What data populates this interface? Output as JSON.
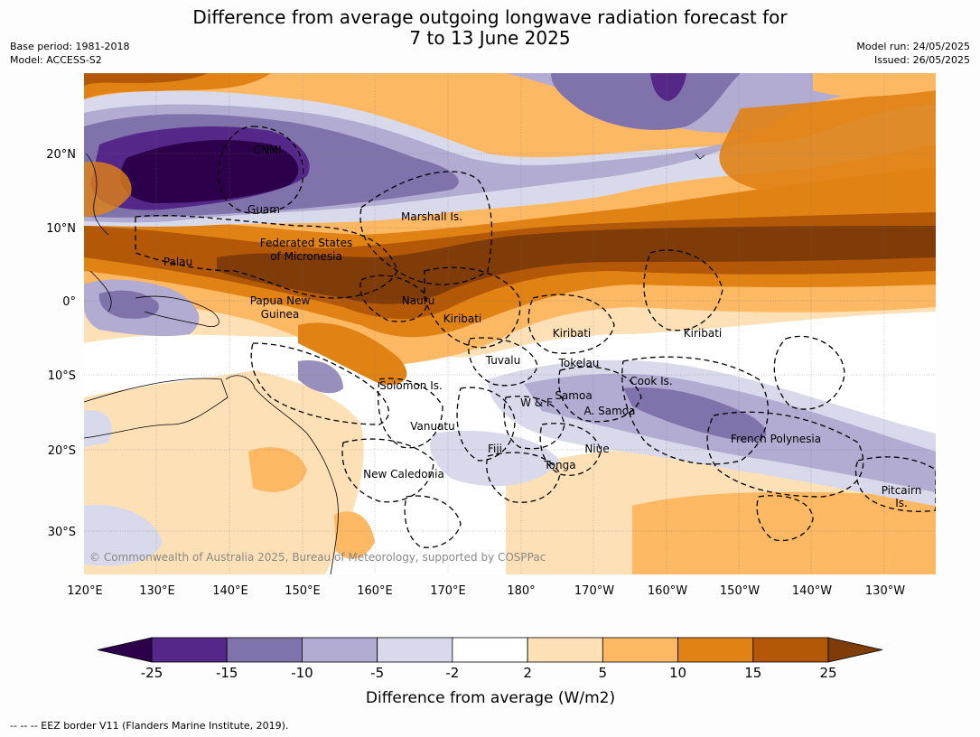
{
  "title_line1": "Difference from average outgoing longwave radiation forecast for",
  "title_line2": "7 to 13 June 2025",
  "base_period": "Base period: 1981-2018",
  "model": "Model: ACCESS-S2",
  "model_run": "Model run: 24/05/2025",
  "issued": "Issued: 26/05/2025",
  "lat_labels": [
    "20°N",
    "10°N",
    "0°",
    "10°S",
    "20°S",
    "30°S"
  ],
  "lon_labels": [
    "120°E",
    "130°E",
    "140°E",
    "150°E",
    "160°E",
    "170°E",
    "180°",
    "170°W",
    "160°W",
    "150°W",
    "140°W",
    "130°W"
  ],
  "credit": "© Commonwealth of Australia 2025, Bureau of Meteorology, supported by COSPPac",
  "regions": [
    "CNMI",
    "Guam",
    "Marshall Is.",
    "Palau",
    "Federated States",
    "of Micronesia",
    "Papua New",
    "Guinea",
    "Nauru",
    "Kiribati",
    "Kiribati",
    "Kiribati",
    "Tuvalu",
    "Tokelau",
    "Cook Is.",
    "Solomon Is.",
    "W & F",
    "Samoa",
    "A. Samoa",
    "Vanuatu",
    "Fiji",
    "Niue",
    "Tonga",
    "New Caledonia",
    "French Polynesia",
    "Pitcairn",
    "Is."
  ],
  "colorbar": {
    "ticks": [
      "-25",
      "-15",
      "-10",
      "-5",
      "-2",
      "2",
      "5",
      "10",
      "15",
      "25"
    ],
    "colors": [
      "#2d004b",
      "#542788",
      "#8073ac",
      "#b2abd2",
      "#d8daeb",
      "#ffffff",
      "#fee0b6",
      "#fdb863",
      "#e08214",
      "#b35806",
      "#7f3b08"
    ],
    "label": "Difference from average (W/m2)"
  },
  "footer": "--  --  -- EEZ border V11 (Flanders Marine Institute, 2019)."
}
